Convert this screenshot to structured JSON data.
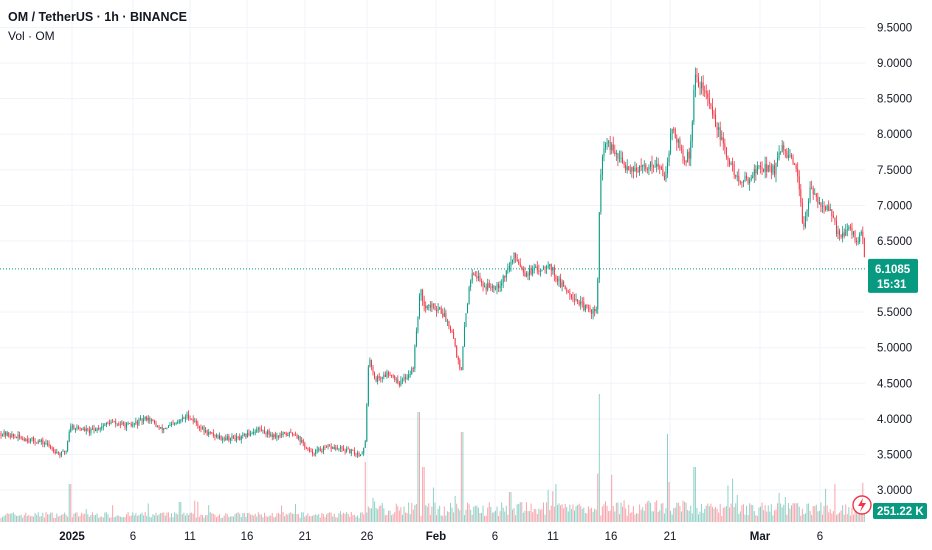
{
  "header": {
    "title": "OM / TetherUS · 1h · BINANCE",
    "volume_label": "Vol · OM"
  },
  "colors": {
    "up": "#089981",
    "down": "#f23645",
    "grid": "#f0f3fa",
    "last_price_line": "#089981"
  },
  "price_label": {
    "price": "6.1085",
    "countdown": "15:31"
  },
  "volume_label": {
    "value": "251.22 K"
  },
  "chart_data": {
    "type": "candlestick",
    "yaxis": {
      "min": 2.75,
      "max": 9.75,
      "ticks": [
        "9.5000",
        "9.0000",
        "8.5000",
        "8.0000",
        "7.5000",
        "7.0000",
        "6.5000",
        "5.5000",
        "5.0000",
        "4.5000",
        "4.0000",
        "3.5000",
        "3.0000"
      ]
    },
    "xaxis": {
      "ticks": [
        "2025",
        "6",
        "11",
        "16",
        "21",
        "26",
        "Feb",
        "6",
        "11",
        "16",
        "21",
        "Mar",
        "6"
      ],
      "bold": [
        "2025",
        "Feb",
        "Mar"
      ]
    },
    "last_price": 6.1085,
    "anchors": [
      [
        0,
        3.8
      ],
      [
        25,
        3.72
      ],
      [
        45,
        3.66
      ],
      [
        60,
        3.5
      ],
      [
        66,
        3.55
      ],
      [
        70,
        3.9
      ],
      [
        90,
        3.82
      ],
      [
        110,
        3.95
      ],
      [
        130,
        3.9
      ],
      [
        148,
        4.02
      ],
      [
        160,
        3.85
      ],
      [
        175,
        3.92
      ],
      [
        188,
        4.05
      ],
      [
        205,
        3.82
      ],
      [
        220,
        3.74
      ],
      [
        240,
        3.72
      ],
      [
        258,
        3.86
      ],
      [
        275,
        3.76
      ],
      [
        295,
        3.8
      ],
      [
        310,
        3.52
      ],
      [
        330,
        3.6
      ],
      [
        345,
        3.56
      ],
      [
        360,
        3.5
      ],
      [
        365,
        3.6
      ],
      [
        369,
        4.9
      ],
      [
        375,
        4.55
      ],
      [
        390,
        4.65
      ],
      [
        400,
        4.5
      ],
      [
        413,
        4.7
      ],
      [
        420,
        5.8
      ],
      [
        425,
        5.6
      ],
      [
        440,
        5.55
      ],
      [
        452,
        5.25
      ],
      [
        461,
        4.6
      ],
      [
        465,
        5.4
      ],
      [
        472,
        6.1
      ],
      [
        485,
        5.85
      ],
      [
        500,
        5.9
      ],
      [
        515,
        6.3
      ],
      [
        525,
        6.05
      ],
      [
        540,
        6.1
      ],
      [
        548,
        6.2
      ],
      [
        560,
        5.9
      ],
      [
        575,
        5.7
      ],
      [
        585,
        5.55
      ],
      [
        597,
        5.5
      ],
      [
        600,
        7.35
      ],
      [
        605,
        7.9
      ],
      [
        625,
        7.55
      ],
      [
        640,
        7.5
      ],
      [
        655,
        7.6
      ],
      [
        665,
        7.4
      ],
      [
        672,
        8.1
      ],
      [
        685,
        7.6
      ],
      [
        690,
        7.75
      ],
      [
        695,
        8.8
      ],
      [
        705,
        8.6
      ],
      [
        715,
        8.2
      ],
      [
        725,
        7.75
      ],
      [
        740,
        7.3
      ],
      [
        750,
        7.4
      ],
      [
        760,
        7.55
      ],
      [
        775,
        7.5
      ],
      [
        782,
        7.8
      ],
      [
        790,
        7.65
      ],
      [
        797,
        7.45
      ],
      [
        803,
        6.7
      ],
      [
        810,
        7.2
      ],
      [
        820,
        7.05
      ],
      [
        830,
        6.9
      ],
      [
        838,
        6.6
      ],
      [
        850,
        6.65
      ],
      [
        858,
        6.5
      ],
      [
        862,
        6.62
      ],
      [
        865,
        6.11
      ]
    ],
    "volume": {
      "unit": "OM",
      "last": 251.22,
      "spikes": [
        [
          70,
          38
        ],
        [
          180,
          20
        ],
        [
          365,
          60
        ],
        [
          419,
          110
        ],
        [
          423,
          55
        ],
        [
          462,
          90
        ],
        [
          510,
          30
        ],
        [
          599,
          128
        ],
        [
          668,
          40
        ],
        [
          695,
          55
        ],
        [
          785,
          25
        ]
      ]
    }
  }
}
